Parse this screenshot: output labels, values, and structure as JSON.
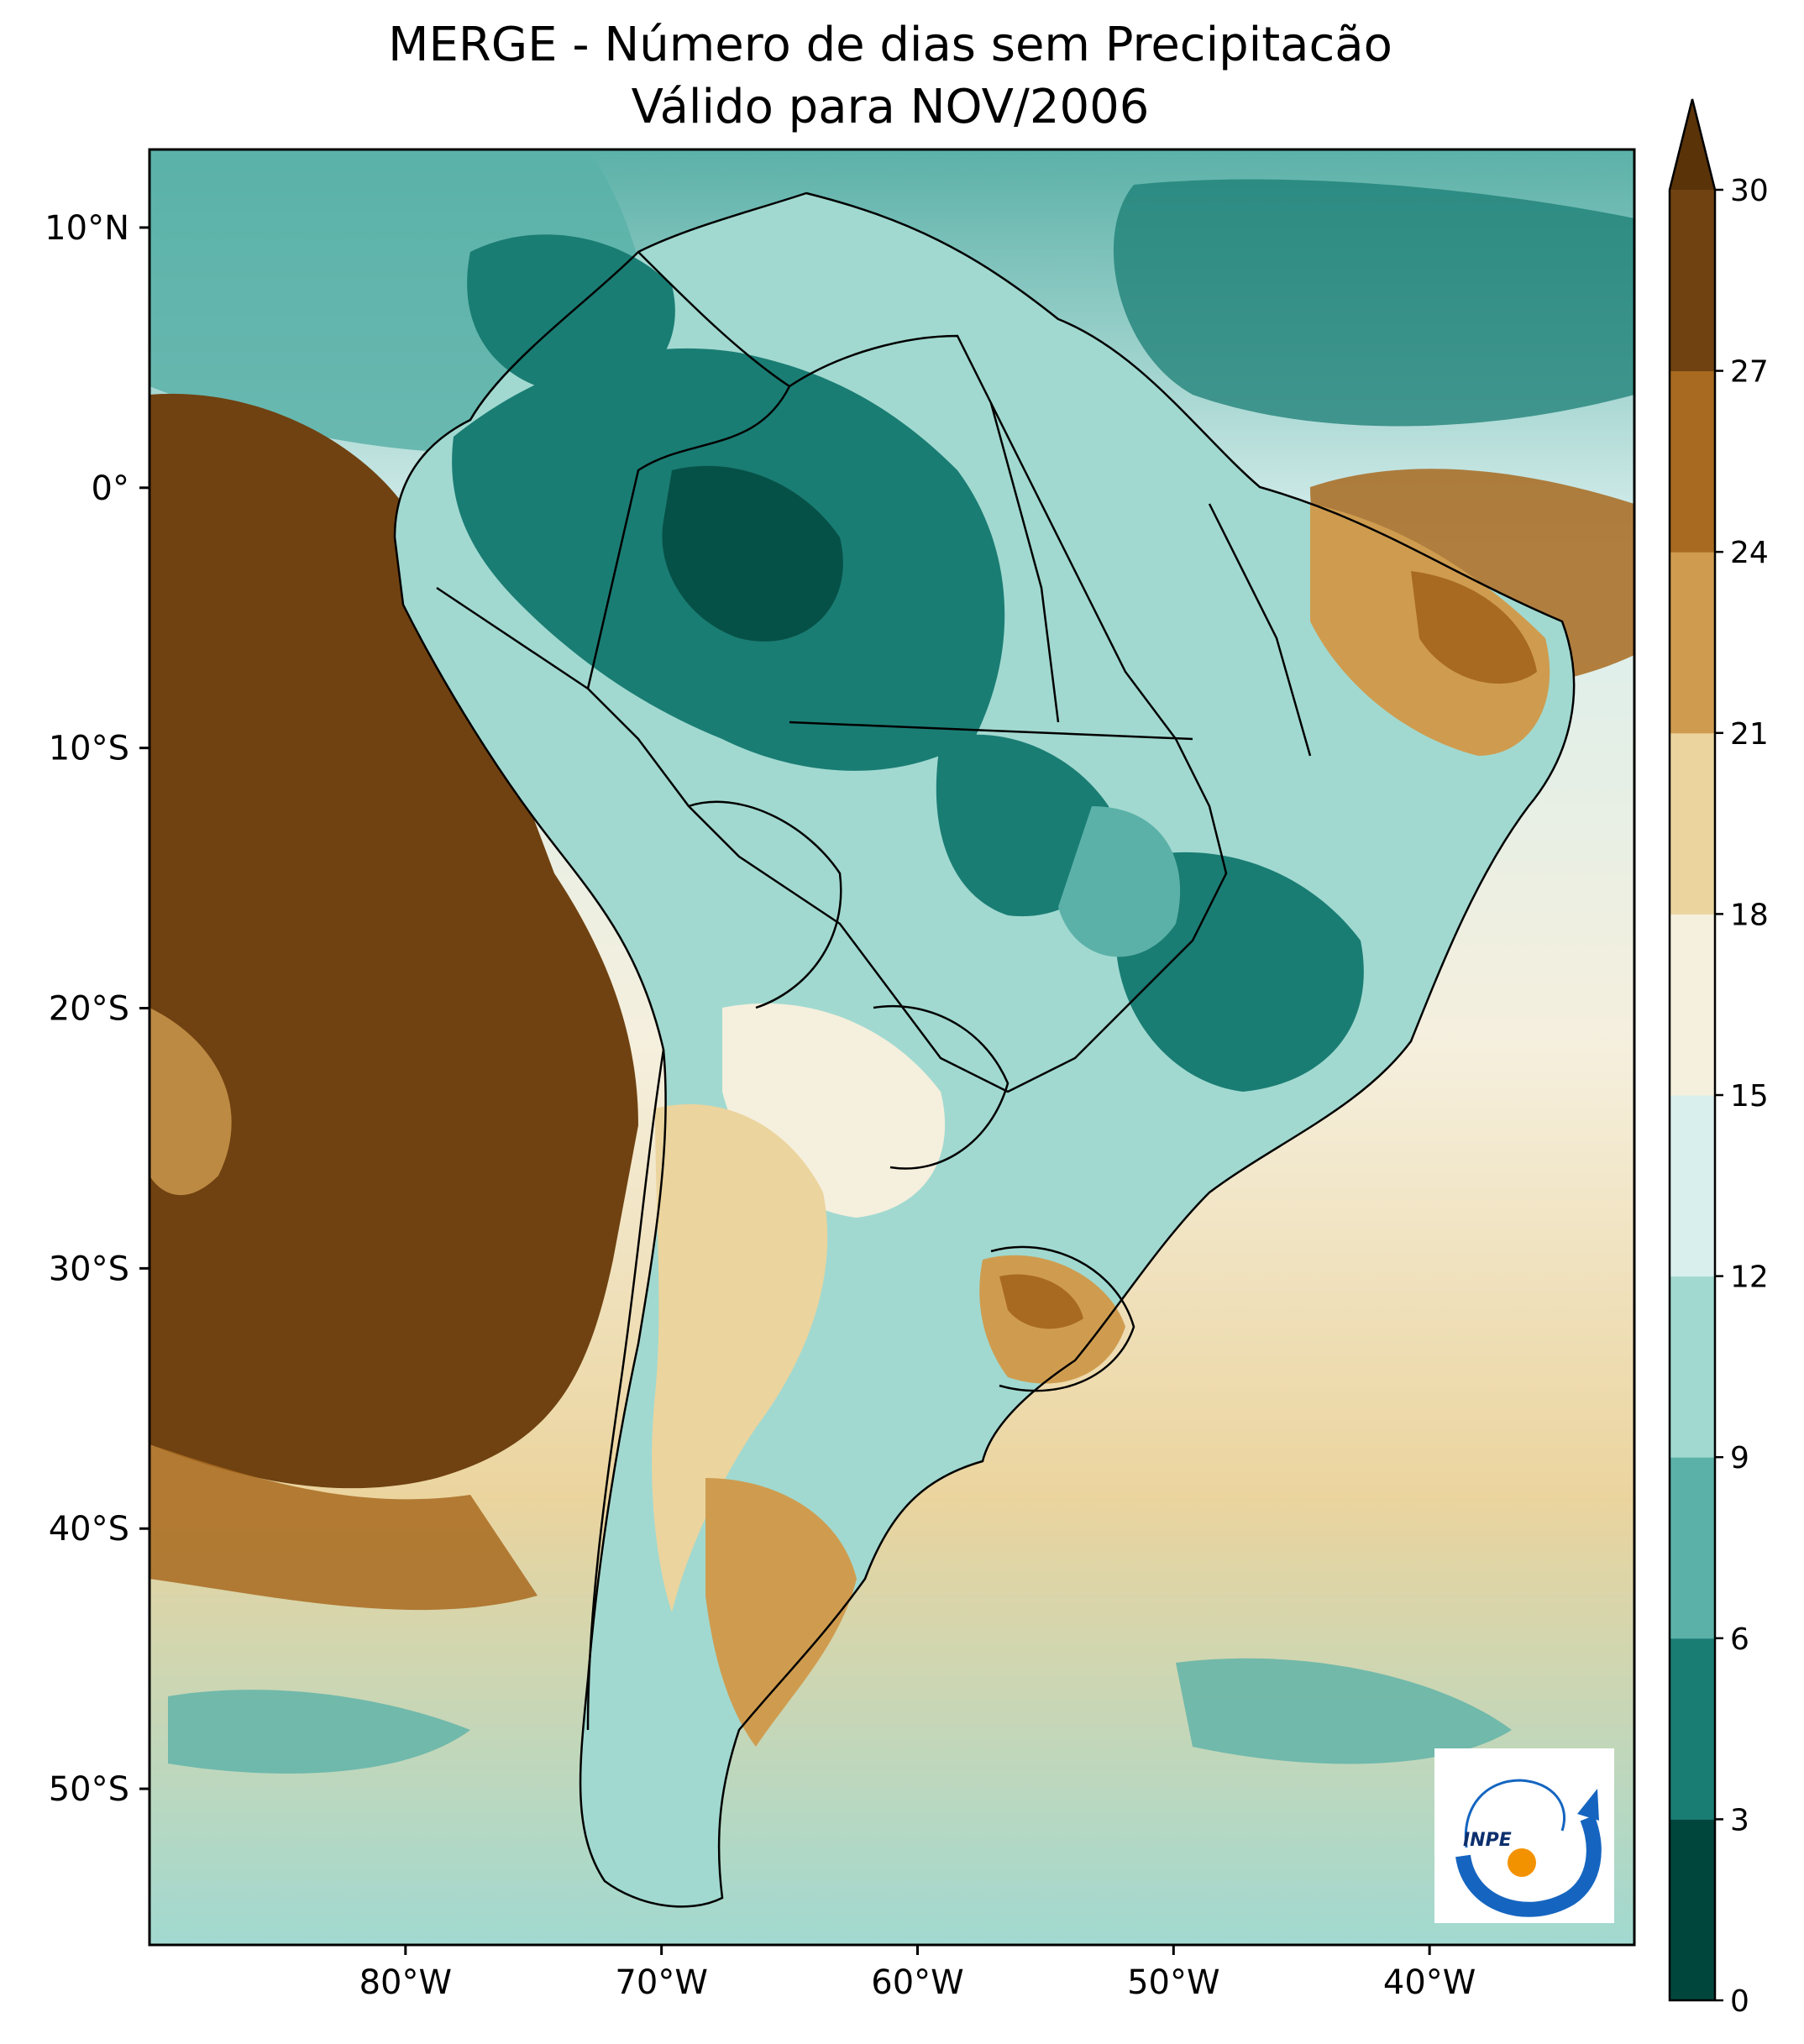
{
  "title": {
    "line1": "MERGE - Número de dias sem Precipitacão",
    "line2": "Válido para NOV/2006"
  },
  "axes": {
    "lat_labels": [
      "10°N",
      "0°",
      "10°S",
      "20°S",
      "30°S",
      "40°S",
      "50°S"
    ],
    "lat_values": [
      10,
      0,
      -10,
      -20,
      -30,
      -40,
      -50
    ],
    "lon_labels": [
      "80°W",
      "70°W",
      "60°W",
      "50°W",
      "40°W"
    ],
    "lon_values": [
      -80,
      -70,
      -60,
      -50,
      -40
    ],
    "lon_range": [
      -90,
      -32
    ],
    "lat_range": [
      -56,
      13
    ]
  },
  "colorbar": {
    "ticks": [
      "0",
      "3",
      "6",
      "9",
      "12",
      "15",
      "18",
      "21",
      "24",
      "27",
      "30"
    ],
    "colors": [
      "#01463c",
      "#1a7d74",
      "#5bb1a8",
      "#a1d9d0",
      "#d9efed",
      "#f5efdd",
      "#ebd49e",
      "#cf9c4f",
      "#a86a20",
      "#704211"
    ],
    "extend": "max",
    "extend_color": "#5a3309"
  },
  "logo": {
    "text": "INPE"
  },
  "colors": {
    "frame": "#000000",
    "border_lines": "#000000"
  }
}
